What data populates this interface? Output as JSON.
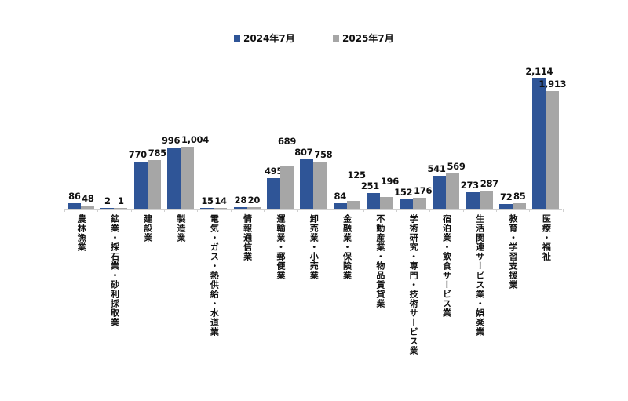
{
  "chart_data": {
    "type": "bar",
    "title": "",
    "xlabel": "",
    "ylabel": "",
    "ylim": [
      0,
      2200
    ],
    "grid": false,
    "legend_position": "top-center",
    "categories": [
      "農林漁業",
      "鉱業・採石業・砂利採取業",
      "建設業",
      "製造業",
      "電気・ガス・熱供給・水道業",
      "情報通信業",
      "運輸業・郵便業",
      "卸売業・小売業",
      "金融業・保険業",
      "不動産業・物品賃貸業",
      "学術研究・専門・技術サービス業",
      "宿泊業・飲食サービス業",
      "生活関連サービス業・娯楽業",
      "教育・学習支援業",
      "医療・福祉"
    ],
    "series": [
      {
        "name": "2024年7月",
        "color": "#2f5597",
        "values": [
          86,
          2,
          770,
          996,
          15,
          28,
          495,
          807,
          84,
          251,
          152,
          541,
          273,
          72,
          2114
        ],
        "labels": [
          "86",
          "2",
          "770",
          "996",
          "15",
          "28",
          "495",
          "807",
          "84",
          "251",
          "152",
          "541",
          "273",
          "72",
          "2,114"
        ]
      },
      {
        "name": "2025年7月",
        "color": "#a6a6a6",
        "values": [
          48,
          1,
          785,
          1004,
          14,
          20,
          689,
          758,
          125,
          196,
          176,
          569,
          287,
          85,
          1913
        ],
        "labels": [
          "48",
          "1",
          "785",
          "1,004",
          "14",
          "20",
          "689",
          "758",
          "125",
          "196",
          "176",
          "569",
          "287",
          "85",
          "1,913"
        ]
      }
    ]
  }
}
